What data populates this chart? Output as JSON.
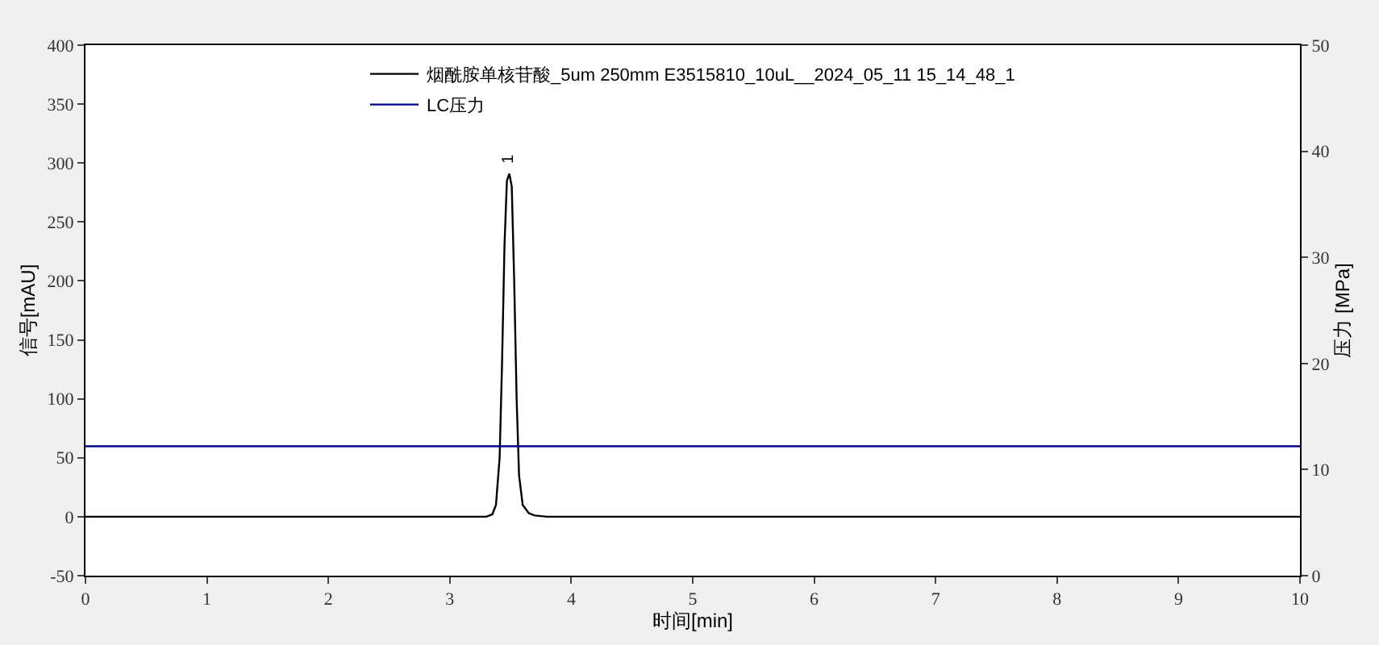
{
  "chart_data": {
    "type": "line",
    "xlabel": "时间[min]",
    "ylabel": "信号[mAU]",
    "y2label": "压力 [MPa]",
    "xlim": [
      0,
      10
    ],
    "xticks": [
      0,
      1,
      2,
      3,
      4,
      5,
      6,
      7,
      8,
      9,
      10
    ],
    "ylim": [
      -50,
      400
    ],
    "yticks": [
      -50,
      0,
      50,
      100,
      150,
      200,
      250,
      300,
      350,
      400
    ],
    "y2lim": [
      0,
      50
    ],
    "y2ticks": [
      0,
      10,
      20,
      30,
      40,
      50
    ],
    "grid": false,
    "legend": "top",
    "marker": "none",
    "line_style": "solid",
    "series": [
      {
        "name": "烟酰胺单核苷酸_5um 250mm E3515810_10uL__2024_05_11 15_14_48_1",
        "color": "#000000",
        "x": [
          0,
          3.1,
          3.3,
          3.35,
          3.38,
          3.41,
          3.43,
          3.45,
          3.47,
          3.49,
          3.51,
          3.53,
          3.55,
          3.57,
          3.6,
          3.65,
          3.7,
          3.8,
          10
        ],
        "values": [
          0,
          0,
          0,
          2,
          10,
          50,
          130,
          230,
          285,
          291,
          280,
          200,
          100,
          35,
          10,
          3,
          1,
          0,
          0
        ]
      },
      {
        "name": "LC压力",
        "color": "#00008b",
        "axis": "y2",
        "x": [
          0,
          10
        ],
        "values": [
          12.2,
          12.2
        ]
      }
    ],
    "annotations": [
      {
        "text": "1",
        "x": 3.49,
        "y": 291
      }
    ]
  }
}
